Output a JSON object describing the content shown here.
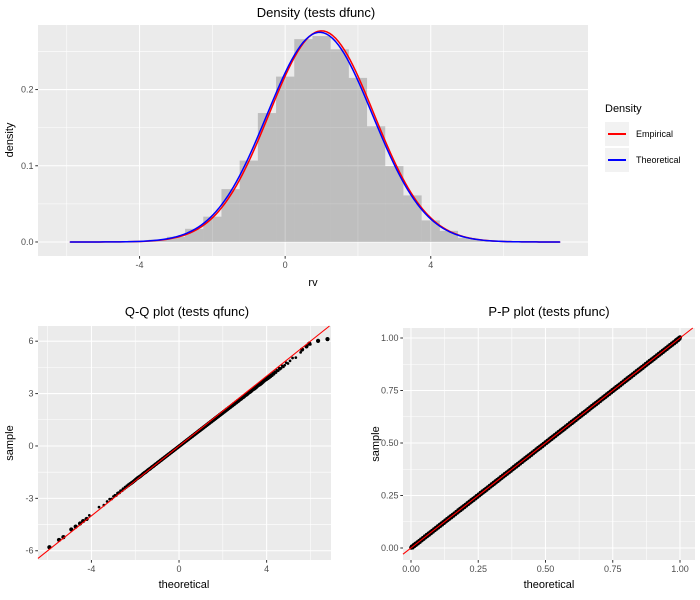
{
  "colors": {
    "background": "#FFFFFF",
    "panel_background": "#EBEBEB",
    "grid": "#FFFFFF",
    "tick_label": "#4D4D4D",
    "tick_mark": "#333333",
    "text": "#000000",
    "legend_key_background": "#F2F2F2",
    "empirical_red": "#FF0000",
    "theoretical_blue": "#0000FF",
    "points_black": "#000000",
    "histogram_fill": "rgba(0,0,0,0.19)"
  },
  "chart_data": [
    {
      "id": "density",
      "type": "histogram+line",
      "title": "Density (tests dfunc)",
      "xlabel": "rv",
      "ylabel": "density",
      "xlim": [
        -6.79,
        8.32
      ],
      "ylim": [
        -0.0184,
        0.2847
      ],
      "x_ticks": {
        "values": [
          -4,
          0,
          4
        ],
        "labels": [
          "-4",
          "0",
          "4"
        ]
      },
      "y_ticks": {
        "values": [
          0.0,
          0.1,
          0.2
        ],
        "labels": [
          "0.0",
          "0.1",
          "0.2"
        ]
      },
      "x_minor": [
        -6,
        -2,
        2,
        6
      ],
      "y_minor": [
        0.05,
        0.15,
        0.25
      ],
      "grid": true,
      "legend_position": "right",
      "histogram": {
        "bin_width": 0.5,
        "centers": [
          -5.5,
          -5.0,
          -4.5,
          -4.0,
          -3.5,
          -3.0,
          -2.5,
          -2.0,
          -1.5,
          -1.0,
          -0.5,
          0.0,
          0.5,
          1.0,
          1.5,
          2.0,
          2.5,
          3.0,
          3.5,
          4.0,
          4.5,
          5.0,
          5.5,
          6.0,
          6.5
        ],
        "densities": [
          0.0001,
          0.0002,
          0.0005,
          0.0012,
          0.0031,
          0.0068,
          0.0173,
          0.0332,
          0.0694,
          0.1068,
          0.1692,
          0.217,
          0.2662,
          0.2702,
          0.2528,
          0.2153,
          0.1518,
          0.0996,
          0.0611,
          0.0283,
          0.0146,
          0.0054,
          0.0021,
          0.0007,
          0.0002
        ]
      },
      "curves": [
        {
          "name": "Empirical",
          "color": "#FF0000",
          "mean": 1.0,
          "sd": 1.44,
          "x_range": [
            -5.9,
            7.55
          ]
        },
        {
          "name": "Theoretical",
          "color": "#0000FF",
          "mean": 0.95,
          "sd": 1.45,
          "x_range": [
            -5.9,
            7.55
          ]
        }
      ],
      "legend": {
        "title": "Density",
        "items": [
          {
            "label": "Empirical",
            "color": "#FF0000"
          },
          {
            "label": "Theoretical",
            "color": "#0000FF"
          }
        ]
      }
    },
    {
      "id": "qq",
      "type": "scatter",
      "title": "Q-Q plot (tests qfunc)",
      "xlabel": "theoretical",
      "ylabel": "sample",
      "xlim": [
        -6.44,
        6.94
      ],
      "ylim": [
        -6.53,
        6.87
      ],
      "x_ticks": {
        "values": [
          -4,
          0,
          4
        ],
        "labels": [
          "-4",
          "0",
          "4"
        ]
      },
      "y_ticks": {
        "values": [
          -6,
          -3,
          0,
          3,
          6
        ],
        "labels": [
          "-6",
          "-3",
          "0",
          "3",
          "6"
        ]
      },
      "x_minor": [
        -6,
        -2,
        2,
        6
      ],
      "y_minor": [
        -4.5,
        -1.5,
        1.5,
        4.5
      ],
      "grid": true,
      "reference_line": {
        "slope": 1,
        "intercept": 0,
        "color": "#FF0000"
      },
      "point_band": {
        "n": 2000,
        "dist_mean": 0.95,
        "dist_sd": 1.45,
        "slope": 0.965,
        "intercept": -0.02,
        "jitter": 0.07
      },
      "extreme_points_low": [
        [
          -5.92,
          -5.8
        ],
        [
          -5.48,
          -5.38
        ],
        [
          -5.28,
          -5.22
        ],
        [
          -4.92,
          -4.78
        ],
        [
          -4.72,
          -4.62
        ],
        [
          -4.52,
          -4.44
        ],
        [
          -4.38,
          -4.3
        ],
        [
          -4.22,
          -4.18
        ]
      ],
      "extreme_points_high": [
        [
          5.62,
          5.52
        ],
        [
          5.82,
          5.7
        ],
        [
          5.95,
          5.86
        ],
        [
          6.35,
          6.02
        ],
        [
          6.78,
          6.12
        ]
      ]
    },
    {
      "id": "pp",
      "type": "scatter",
      "title": "P-P plot (tests pfunc)",
      "xlabel": "theoretical",
      "ylabel": "sample",
      "xlim": [
        -0.0297,
        1.0558
      ],
      "ylim": [
        -0.0571,
        1.0476
      ],
      "x_ticks": {
        "values": [
          0,
          0.25,
          0.5,
          0.75,
          1
        ],
        "labels": [
          "0.00",
          "0.25",
          "0.50",
          "0.75",
          "1.00"
        ]
      },
      "y_ticks": {
        "values": [
          0,
          0.25,
          0.5,
          0.75,
          1
        ],
        "labels": [
          "0.00",
          "0.25",
          "0.50",
          "0.75",
          "1.00"
        ]
      },
      "x_minor": [
        0.125,
        0.375,
        0.625,
        0.875
      ],
      "y_minor": [
        0.125,
        0.375,
        0.625,
        0.875
      ],
      "grid": true,
      "reference_line": {
        "slope": 1,
        "intercept": 0,
        "color": "#FF0000"
      },
      "point_band": {
        "n": 700,
        "jitter": 0.006
      },
      "extreme_points_low": [
        [
          0.001,
          0.002
        ],
        [
          0.004,
          0.006
        ],
        [
          0.009,
          0.012
        ],
        [
          0.014,
          0.017
        ]
      ],
      "extreme_points_high": [
        [
          0.986,
          0.99
        ],
        [
          0.992,
          0.995
        ],
        [
          0.997,
          1.0
        ],
        [
          1.0,
          1.003
        ]
      ]
    }
  ]
}
